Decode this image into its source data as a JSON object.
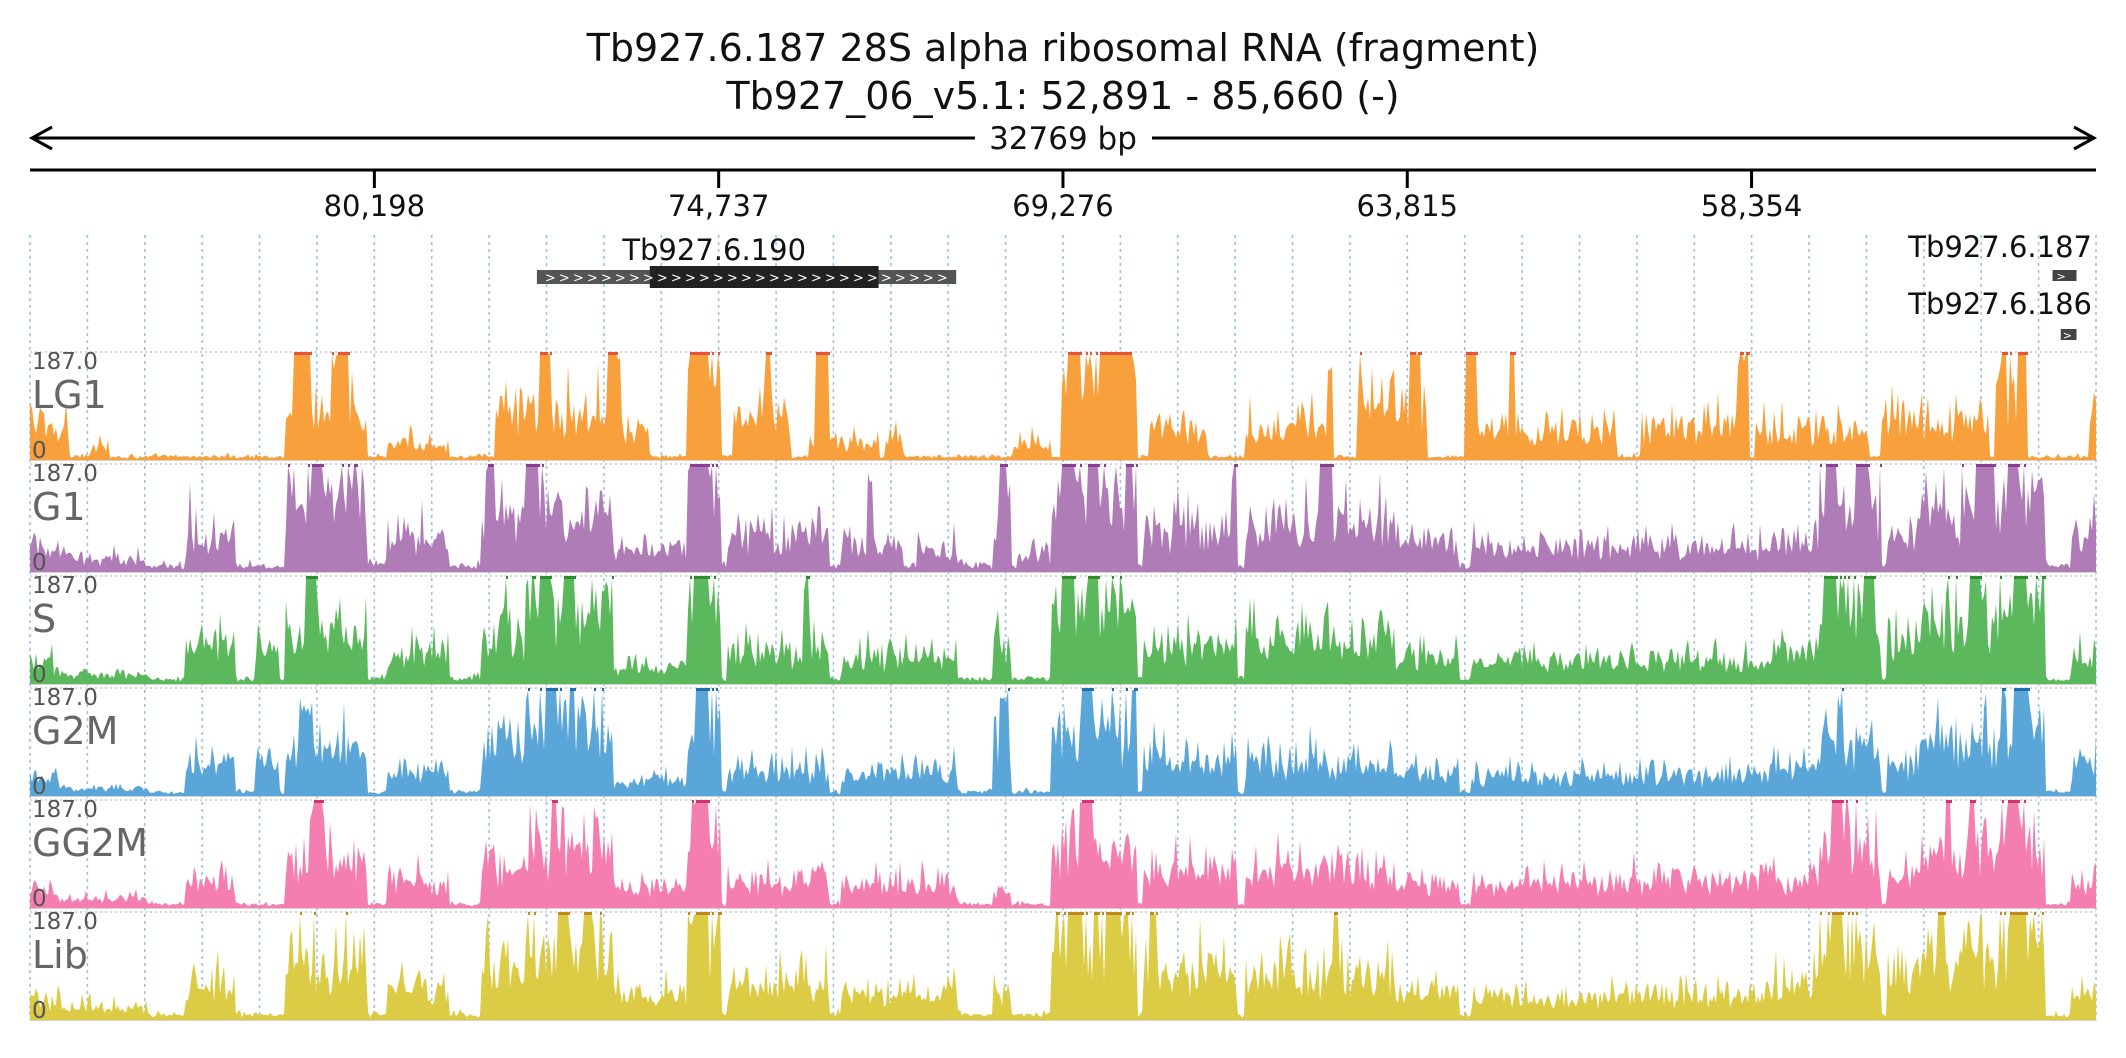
{
  "title": "Tb927.6.187  28S alpha ribosomal RNA (fragment)",
  "subtitle": "Tb927_06_v5.1: 52,891 - 85,660 (-)",
  "chart_data": {
    "type": "area",
    "chromosome": "Tb927_06_v5.1",
    "strand": "-",
    "region": [
      52891,
      85660
    ],
    "span_label": "32769 bp",
    "xlim": [
      85660,
      52891
    ],
    "x_ticks": [
      80198,
      74737,
      69276,
      63815,
      58354
    ],
    "x_tick_labels": [
      "80,198",
      "74,737",
      "69,276",
      "63,815",
      "58,354"
    ],
    "genes": [
      {
        "name": "Tb927.6.190",
        "utr_start": 77620,
        "cds_start": 75830,
        "cds_end": 72200,
        "utr_end": 70970,
        "direction": "right"
      },
      {
        "name": "Tb927.6.187",
        "utr_start": 53580,
        "cds_start": 53580,
        "cds_end": 53200,
        "utr_end": 53200,
        "direction": "right"
      },
      {
        "name": "Tb927.6.186",
        "utr_start": 53450,
        "cds_start": 53450,
        "cds_end": 53200,
        "utr_end": 53200,
        "direction": "right"
      }
    ],
    "ylim": [
      0,
      187.0
    ],
    "y_max_label": "187.0",
    "y_min_label": "0",
    "series": [
      {
        "name": "LG1",
        "color": "#f8a03c",
        "clip_color": "#e8543a",
        "ybase": 0.05,
        "regions": [
          [
            85660,
            85040,
            0.55
          ],
          [
            84700,
            84400,
            0.25
          ],
          [
            81600,
            80300,
            0.7
          ],
          [
            80000,
            79000,
            0.25
          ],
          [
            78300,
            76400,
            0.7
          ],
          [
            76400,
            75830,
            0.45
          ],
          [
            75230,
            74700,
            1.4
          ],
          [
            74500,
            73600,
            0.7
          ],
          [
            73300,
            72200,
            0.25
          ],
          [
            72100,
            71800,
            0.4
          ],
          [
            70060,
            69450,
            0.25
          ],
          [
            69300,
            68100,
            1.4
          ],
          [
            67900,
            67000,
            0.5
          ],
          [
            66400,
            65000,
            0.55
          ],
          [
            64600,
            63500,
            0.8
          ],
          [
            62900,
            60500,
            0.45
          ],
          [
            60100,
            58500,
            0.5
          ],
          [
            58300,
            56500,
            0.45
          ],
          [
            56300,
            54600,
            0.55
          ],
          [
            54500,
            54000,
            1.0
          ],
          [
            53000,
            52891,
            0.7
          ]
        ],
        "spikes": [
          [
            81500,
            81200,
            1.4
          ],
          [
            80900,
            80600,
            1.1
          ],
          [
            77600,
            77400,
            1.2
          ],
          [
            76500,
            76300,
            1.2
          ],
          [
            75100,
            74900,
            1.5
          ],
          [
            74000,
            73900,
            1.2
          ],
          [
            73200,
            73000,
            1.3
          ],
          [
            69200,
            69000,
            1.3
          ],
          [
            68700,
            68200,
            1.5
          ],
          [
            65100,
            65000,
            1.0
          ],
          [
            63800,
            63600,
            1.3
          ],
          [
            62900,
            62700,
            1.5
          ],
          [
            62200,
            62100,
            1.3
          ],
          [
            58600,
            58400,
            1.1
          ],
          [
            54400,
            54300,
            1.5
          ],
          [
            54100,
            54000,
            1.5
          ]
        ]
      },
      {
        "name": "G1",
        "color": "#b07cb8",
        "clip_color": "#8a3f92",
        "ybase": 0.1,
        "regions": [
          [
            85660,
            85200,
            0.35
          ],
          [
            85200,
            83800,
            0.2
          ],
          [
            83200,
            82400,
            0.6
          ],
          [
            81600,
            80300,
            1.1
          ],
          [
            80000,
            79000,
            0.55
          ],
          [
            78500,
            76400,
            0.9
          ],
          [
            76400,
            75230,
            0.3
          ],
          [
            75230,
            74700,
            1.3
          ],
          [
            74600,
            73000,
            0.55
          ],
          [
            72800,
            71800,
            0.4
          ],
          [
            71600,
            70970,
            0.35
          ],
          [
            70400,
            70100,
            0.7
          ],
          [
            70000,
            69500,
            0.3
          ],
          [
            69450,
            68100,
            1.2
          ],
          [
            68000,
            66500,
            0.65
          ],
          [
            66400,
            64000,
            0.7
          ],
          [
            64000,
            63000,
            0.45
          ],
          [
            62800,
            60000,
            0.4
          ],
          [
            60000,
            58000,
            0.4
          ],
          [
            58000,
            57300,
            0.5
          ],
          [
            57300,
            56300,
            1.1
          ],
          [
            56200,
            55700,
            0.55
          ],
          [
            55700,
            54400,
            0.9
          ],
          [
            54400,
            53700,
            1.2
          ],
          [
            53300,
            52891,
            0.55
          ]
        ],
        "spikes": [
          [
            81200,
            81000,
            1.5
          ],
          [
            78400,
            78300,
            1.3
          ],
          [
            77800,
            77600,
            1.5
          ],
          [
            75200,
            74900,
            1.6
          ],
          [
            72400,
            72300,
            0.9
          ],
          [
            70300,
            70150,
            1.2
          ],
          [
            69300,
            69100,
            1.5
          ],
          [
            68900,
            68700,
            1.6
          ],
          [
            68300,
            68200,
            1.4
          ],
          [
            66600,
            66500,
            1.1
          ],
          [
            65200,
            65000,
            1.1
          ],
          [
            57200,
            57000,
            1.5
          ],
          [
            56700,
            56500,
            1.5
          ],
          [
            54800,
            54500,
            1.5
          ],
          [
            54300,
            54100,
            1.5
          ]
        ]
      },
      {
        "name": "S",
        "color": "#5cb85c",
        "clip_color": "#2e8b2e",
        "ybase": 0.08,
        "regions": [
          [
            85660,
            85200,
            0.3
          ],
          [
            85200,
            83800,
            0.15
          ],
          [
            83200,
            82400,
            0.55
          ],
          [
            82100,
            81700,
            0.6
          ],
          [
            81600,
            80300,
            0.8
          ],
          [
            80000,
            79000,
            0.45
          ],
          [
            78500,
            77800,
            0.8
          ],
          [
            77800,
            76400,
            1.1
          ],
          [
            76400,
            75230,
            0.25
          ],
          [
            75230,
            74700,
            1.4
          ],
          [
            74600,
            73000,
            0.5
          ],
          [
            72800,
            70970,
            0.4
          ],
          [
            70400,
            70100,
            0.55
          ],
          [
            69450,
            68100,
            1.2
          ],
          [
            68000,
            66500,
            0.6
          ],
          [
            66400,
            64000,
            0.7
          ],
          [
            64000,
            63000,
            0.4
          ],
          [
            62800,
            58000,
            0.35
          ],
          [
            58000,
            57300,
            0.55
          ],
          [
            57300,
            56300,
            1.1
          ],
          [
            56200,
            55700,
            0.6
          ],
          [
            55700,
            54400,
            0.9
          ],
          [
            54400,
            53700,
            1.15
          ],
          [
            53300,
            52891,
            0.4
          ]
        ],
        "spikes": [
          [
            81300,
            81100,
            1.2
          ],
          [
            77600,
            77400,
            1.5
          ],
          [
            77200,
            77000,
            1.5
          ],
          [
            75100,
            74900,
            1.5
          ],
          [
            73400,
            73300,
            1.1
          ],
          [
            69300,
            69100,
            1.5
          ],
          [
            68900,
            68700,
            1.5
          ],
          [
            57200,
            57000,
            1.5
          ],
          [
            56600,
            56400,
            1.5
          ],
          [
            54900,
            54700,
            1.3
          ],
          [
            54200,
            54000,
            1.6
          ]
        ]
      },
      {
        "name": "G2M",
        "color": "#5aa6d9",
        "clip_color": "#1f6fb0",
        "ybase": 0.06,
        "regions": [
          [
            85660,
            85200,
            0.25
          ],
          [
            85200,
            83800,
            0.12
          ],
          [
            83200,
            82400,
            0.45
          ],
          [
            82100,
            81700,
            0.55
          ],
          [
            81600,
            80300,
            0.8
          ],
          [
            80000,
            79000,
            0.4
          ],
          [
            78500,
            77800,
            0.75
          ],
          [
            77800,
            76400,
            1.1
          ],
          [
            76400,
            75230,
            0.25
          ],
          [
            75230,
            74700,
            1.3
          ],
          [
            74600,
            73000,
            0.4
          ],
          [
            72800,
            70970,
            0.35
          ],
          [
            70400,
            70100,
            1.0
          ],
          [
            69450,
            68100,
            1.0
          ],
          [
            68000,
            66500,
            0.55
          ],
          [
            66400,
            64000,
            0.5
          ],
          [
            64000,
            63000,
            0.35
          ],
          [
            62800,
            58000,
            0.3
          ],
          [
            58000,
            57300,
            0.45
          ],
          [
            57300,
            56300,
            0.8
          ],
          [
            56200,
            55700,
            0.45
          ],
          [
            55700,
            54400,
            0.8
          ],
          [
            54400,
            53700,
            1.0
          ],
          [
            53300,
            52891,
            0.45
          ]
        ],
        "spikes": [
          [
            81400,
            81200,
            0.9
          ],
          [
            77500,
            77300,
            1.5
          ],
          [
            77100,
            77000,
            1.5
          ],
          [
            75100,
            74900,
            1.5
          ],
          [
            70300,
            70200,
            1.0
          ],
          [
            69000,
            68800,
            1.4
          ],
          [
            57000,
            56900,
            1.0
          ],
          [
            54200,
            54000,
            1.6
          ]
        ]
      },
      {
        "name": "GG2M",
        "color": "#f47eb0",
        "clip_color": "#d6336c",
        "ybase": 0.06,
        "regions": [
          [
            85660,
            85200,
            0.25
          ],
          [
            85200,
            83800,
            0.15
          ],
          [
            83200,
            82400,
            0.45
          ],
          [
            81600,
            80300,
            0.75
          ],
          [
            80000,
            79000,
            0.4
          ],
          [
            78500,
            77800,
            0.6
          ],
          [
            77800,
            76400,
            0.9
          ],
          [
            76400,
            75230,
            0.3
          ],
          [
            75230,
            74700,
            1.4
          ],
          [
            74600,
            73000,
            0.4
          ],
          [
            72800,
            70970,
            0.35
          ],
          [
            70400,
            70100,
            0.3
          ],
          [
            69450,
            68100,
            0.9
          ],
          [
            68000,
            66500,
            0.55
          ],
          [
            66400,
            64000,
            0.6
          ],
          [
            64000,
            63000,
            0.35
          ],
          [
            62800,
            58000,
            0.4
          ],
          [
            58000,
            57300,
            0.45
          ],
          [
            57300,
            56300,
            0.9
          ],
          [
            56200,
            55700,
            0.5
          ],
          [
            55700,
            54400,
            0.9
          ],
          [
            54400,
            53700,
            1.05
          ],
          [
            53300,
            52891,
            0.4
          ]
        ],
        "spikes": [
          [
            81200,
            81000,
            1.1
          ],
          [
            77400,
            77300,
            1.5
          ],
          [
            75100,
            74900,
            1.6
          ],
          [
            69000,
            68800,
            1.3
          ],
          [
            57100,
            56900,
            1.4
          ],
          [
            55300,
            55200,
            1.3
          ],
          [
            54900,
            54800,
            1.3
          ],
          [
            54300,
            54100,
            1.3
          ]
        ]
      },
      {
        "name": "Lib",
        "color": "#dccb44",
        "clip_color": "#c08a20",
        "ybase": 0.08,
        "regions": [
          [
            85660,
            85200,
            0.3
          ],
          [
            85200,
            83800,
            0.2
          ],
          [
            83200,
            82400,
            0.55
          ],
          [
            81600,
            80300,
            0.85
          ],
          [
            80000,
            79000,
            0.5
          ],
          [
            78500,
            77800,
            0.8
          ],
          [
            77800,
            76400,
            1.15
          ],
          [
            76400,
            75230,
            0.4
          ],
          [
            75230,
            74700,
            1.4
          ],
          [
            74600,
            73000,
            0.55
          ],
          [
            72800,
            70970,
            0.4
          ],
          [
            70400,
            70100,
            0.4
          ],
          [
            69450,
            68100,
            1.2
          ],
          [
            68000,
            66500,
            0.75
          ],
          [
            66400,
            64000,
            0.65
          ],
          [
            64000,
            63000,
            0.4
          ],
          [
            62800,
            58000,
            0.35
          ],
          [
            58000,
            57300,
            0.55
          ],
          [
            57300,
            56300,
            1.1
          ],
          [
            56200,
            55700,
            0.65
          ],
          [
            55700,
            54400,
            1.0
          ],
          [
            54400,
            53700,
            1.15
          ],
          [
            53300,
            52891,
            0.45
          ]
        ],
        "spikes": [
          [
            77300,
            77100,
            1.5
          ],
          [
            76900,
            76800,
            1.5
          ],
          [
            75100,
            74900,
            1.5
          ],
          [
            69200,
            69000,
            1.5
          ],
          [
            68600,
            68400,
            1.5
          ],
          [
            67900,
            67800,
            1.3
          ],
          [
            65000,
            64900,
            1.2
          ],
          [
            57100,
            56900,
            1.5
          ],
          [
            55400,
            55300,
            1.3
          ],
          [
            54200,
            54000,
            1.5
          ]
        ]
      }
    ]
  }
}
